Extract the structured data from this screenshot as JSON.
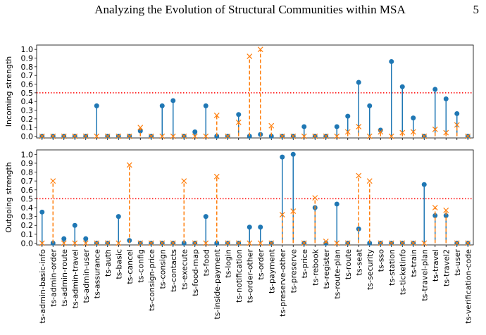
{
  "header": {
    "title": "Analyzing the Evolution of Structural Communities within MSA",
    "page": "5"
  },
  "chart_data": [
    {
      "type": "stem",
      "y_label": "Incoming strength",
      "ylim": [
        -0.02,
        1.05
      ],
      "yticks": [
        {
          "value": 0,
          "label": "0.0"
        },
        0.1,
        0.2,
        0.3,
        0.4,
        0.5,
        0.6,
        0.7,
        0.8,
        0.9,
        {
          "value": 1,
          "label": "1.0"
        }
      ],
      "threshold": {
        "value": 0.5,
        "color": "#ff0000"
      },
      "series": [
        {
          "color": "#1f77b4",
          "marker": "circle",
          "line": "solid",
          "values": [
            0,
            0,
            0,
            0,
            0,
            0.35,
            0,
            0,
            0,
            0.06,
            0,
            0.35,
            0.41,
            0,
            0.05,
            0.35,
            0,
            0,
            0.25,
            0,
            0.02,
            0,
            0,
            0,
            0.11,
            0,
            0,
            0.11,
            0.23,
            0.62,
            0.35,
            0.07,
            0.86,
            0.57,
            0.21,
            0,
            0.54,
            0.43,
            0.26,
            0
          ]
        },
        {
          "color": "#ff7f0e",
          "marker": "x",
          "line": "dashed",
          "values": [
            0,
            0,
            0,
            0,
            0,
            0,
            0,
            0,
            0,
            0.1,
            0,
            0,
            0,
            0,
            0,
            0,
            0.24,
            0,
            0.16,
            0.92,
            1.0,
            0.12,
            0,
            0,
            0,
            0,
            0,
            0,
            0.05,
            0.11,
            0,
            0.05,
            0,
            0.04,
            0.05,
            0,
            0.08,
            0.04,
            0.13,
            0
          ]
        }
      ]
    },
    {
      "type": "stem",
      "y_label": "Outgoing strength",
      "ylim": [
        -0.02,
        1.05
      ],
      "yticks": [
        {
          "value": 0,
          "label": "0.0"
        },
        0.1,
        0.2,
        0.3,
        0.4,
        0.5,
        0.6,
        0.7,
        0.8,
        0.9,
        {
          "value": 1,
          "label": "1.0"
        }
      ],
      "threshold": {
        "value": 0.5,
        "color": "#ff0000"
      },
      "categories": [
        "ts-admin-basic-info",
        "ts-admin-order",
        "ts-admin-route",
        "ts-admin-travel",
        "ts-admin-user",
        "ts-assurance",
        "ts-auth",
        "ts-basic",
        "ts-cancel",
        "ts-config",
        "ts-consign-price",
        "ts-consign",
        "ts-contacts",
        "ts-execute",
        "ts-food-map",
        "ts-food",
        "ts-inside-payment",
        "ts-login",
        "ts-notification",
        "ts-order-other",
        "ts-order",
        "ts-payment",
        "ts-preserve-other",
        "ts-preserve",
        "ts-price",
        "ts-rebook",
        "ts-register",
        "ts-route-plan",
        "ts-route",
        "ts-seat",
        "ts-security",
        "ts-sso",
        "ts-station",
        "ts-ticketinfo",
        "ts-train",
        "ts-travel-plan",
        "ts-travel",
        "ts-travel2",
        "ts-user",
        "ts-verification-code"
      ],
      "series": [
        {
          "color": "#1f77b4",
          "marker": "circle",
          "line": "solid",
          "values": [
            0.35,
            0,
            0.05,
            0.2,
            0.05,
            0,
            0,
            0.3,
            0.03,
            0,
            0,
            0,
            0,
            0,
            0,
            0.3,
            0,
            0,
            0,
            0.18,
            0.18,
            0,
            0.97,
            1.0,
            0,
            0.4,
            0,
            0.44,
            0,
            0.16,
            0,
            0,
            0,
            0,
            0,
            0.66,
            0.31,
            0.31,
            0,
            0
          ]
        },
        {
          "color": "#ff7f0e",
          "marker": "x",
          "line": "dashed",
          "values": [
            0,
            0.7,
            0,
            0,
            0,
            0,
            0,
            0,
            0.88,
            0,
            0,
            0,
            0,
            0.7,
            0,
            0,
            0.75,
            0,
            0,
            0,
            0,
            0,
            0.32,
            0.36,
            0,
            0.51,
            0.02,
            0,
            0,
            0.76,
            0.7,
            0,
            0,
            0,
            0,
            0,
            0.4,
            0.37,
            0,
            0
          ]
        }
      ]
    }
  ]
}
